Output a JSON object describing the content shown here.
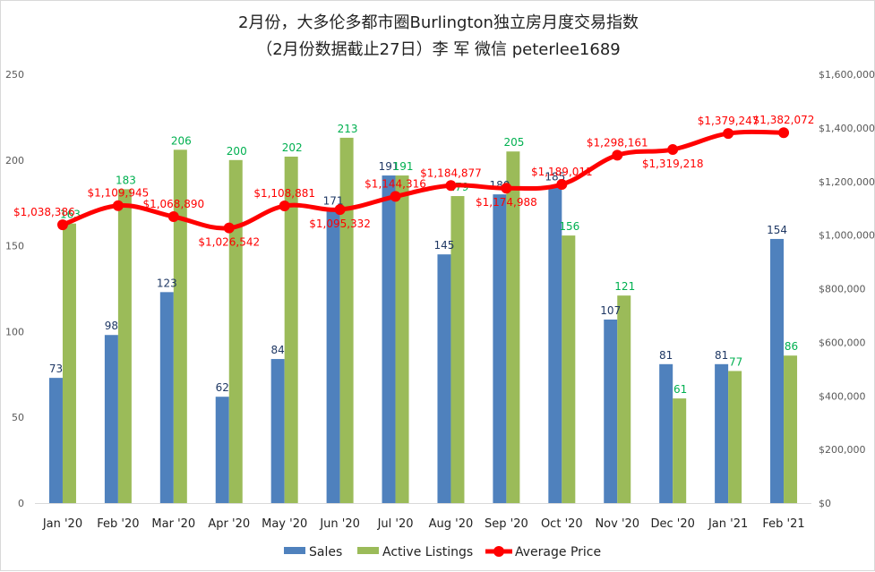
{
  "chart_data": {
    "type": "bar",
    "title": "2月份，大多伦多都市圈Burlington独立房月度交易指数",
    "subtitle": "（2月份数据截止27日）李 军 微信 peterlee1689",
    "categories": [
      "Jan '20",
      "Feb '20",
      "Mar '20",
      "Apr '20",
      "May '20",
      "Jun '20",
      "Jul '20",
      "Aug '20",
      "Sep '20",
      "Oct '20",
      "Nov '20",
      "Dec '20",
      "Jan '21",
      "Feb '21"
    ],
    "series": [
      {
        "name": "Sales",
        "type": "bar",
        "axis": "left",
        "color": "#4f81bd",
        "values": [
          73,
          98,
          123,
          62,
          84,
          171,
          191,
          145,
          180,
          185,
          107,
          81,
          81,
          154
        ],
        "labels": [
          "73",
          "98",
          "123",
          "62",
          "84",
          "171",
          "191",
          "145",
          "180",
          "185",
          "107",
          "81",
          "81",
          "154"
        ]
      },
      {
        "name": "Active Listings",
        "type": "bar",
        "axis": "left",
        "color": "#9bbb59",
        "values": [
          163,
          183,
          206,
          200,
          202,
          213,
          191,
          179,
          205,
          156,
          121,
          61,
          77,
          86
        ],
        "labels": [
          "163",
          "183",
          "206",
          "200",
          "202",
          "213",
          "191",
          "179",
          "205",
          "156",
          "121",
          "61",
          "77",
          "86"
        ]
      },
      {
        "name": "Average Price",
        "type": "line",
        "axis": "right",
        "color": "#ff0000",
        "values": [
          1038386,
          1109945,
          1068890,
          1026542,
          1108881,
          1095332,
          1144316,
          1184877,
          1174988,
          1189011,
          1298161,
          1319218,
          1379247,
          1382072
        ],
        "labels": [
          "$1,038,386",
          "$1,109,945",
          "$1,068,890",
          "$1,026,542",
          "$1,108,881",
          "$1,095,332",
          "$1,144,316",
          "$1,184,877",
          "$1,174,988",
          "$1,189,011",
          "$1,298,161",
          "$1,319,218",
          "$1,379,247",
          "$1,382,072"
        ]
      }
    ],
    "y_left": {
      "min": 0,
      "max": 250,
      "ticks": [
        0,
        50,
        100,
        150,
        200,
        250
      ],
      "tick_labels": [
        "0",
        "50",
        "100",
        "150",
        "200",
        "250"
      ]
    },
    "y_right": {
      "min": 0,
      "max": 1600000,
      "ticks": [
        0,
        200000,
        400000,
        600000,
        800000,
        1000000,
        1200000,
        1400000,
        1600000
      ],
      "tick_labels": [
        "$0",
        "$200,000",
        "$400,000",
        "$600,000",
        "$800,000",
        "$1,000,000",
        "$1,200,000",
        "$1,400,000",
        "$1,600,000"
      ]
    },
    "grid": false,
    "legend_position": "bottom",
    "label_colors": {
      "sales": "#1f3864",
      "listings": "#00b050",
      "price": "#ff0000"
    }
  }
}
